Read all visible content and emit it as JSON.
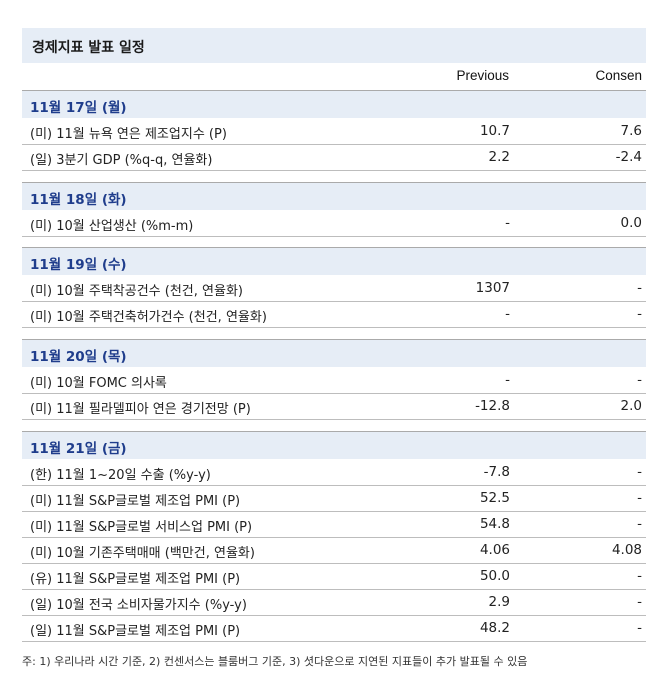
{
  "title": "경제지표 발표 일정",
  "columns": {
    "previous": "Previous",
    "consensus": "Consen"
  },
  "days": [
    {
      "label": "11월 17일 (월)",
      "rows": [
        {
          "label": "(미) 11월 뉴욕 연은 제조업지수 (P)",
          "previous": "10.7",
          "consensus": "7.6"
        },
        {
          "label": "(일) 3분기 GDP (%q-q, 연율화)",
          "previous": "2.2",
          "consensus": "-2.4"
        }
      ]
    },
    {
      "label": "11월 18일 (화)",
      "rows": [
        {
          "label": "(미) 10월 산업생산 (%m-m)",
          "previous": "-",
          "consensus": "0.0"
        }
      ]
    },
    {
      "label": "11월 19일 (수)",
      "rows": [
        {
          "label": "(미) 10월 주택착공건수 (천건, 연율화)",
          "previous": "1307",
          "consensus": "-"
        },
        {
          "label": "(미) 10월 주택건축허가건수 (천건, 연율화)",
          "previous": "-",
          "consensus": "-"
        }
      ]
    },
    {
      "label": "11월 20일 (목)",
      "rows": [
        {
          "label": "(미) 10월 FOMC 의사록",
          "previous": "-",
          "consensus": "-"
        },
        {
          "label": "(미) 11월 필라델피아 연은 경기전망 (P)",
          "previous": "-12.8",
          "consensus": "2.0"
        }
      ]
    },
    {
      "label": "11월 21일 (금)",
      "rows": [
        {
          "label": "(한) 11월 1~20일 수출 (%y-y)",
          "previous": "-7.8",
          "consensus": "-"
        },
        {
          "label": "(미) 11월 S&P글로벌 제조업 PMI (P)",
          "previous": "52.5",
          "consensus": "-"
        },
        {
          "label": "(미) 11월 S&P글로벌 서비스업 PMI (P)",
          "previous": "54.8",
          "consensus": "-"
        },
        {
          "label": "(미) 10월 기존주택매매 (백만건, 연율화)",
          "previous": "4.06",
          "consensus": "4.08"
        },
        {
          "label": "(유) 11월 S&P글로벌 제조업 PMI (P)",
          "previous": "50.0",
          "consensus": "-"
        },
        {
          "label": "(일) 10월 전국 소비자물가지수 (%y-y)",
          "previous": "2.9",
          "consensus": "-"
        },
        {
          "label": "(일) 11월 S&P글로벌 제조업 PMI (P)",
          "previous": "48.2",
          "consensus": "-"
        }
      ]
    }
  ],
  "footnote": "주: 1) 우리나라 시간 기준, 2) 컨센서스는 블룸버그 기준, 3) 셧다운으로 지연된 지표들이 추가 발표될 수 있음"
}
